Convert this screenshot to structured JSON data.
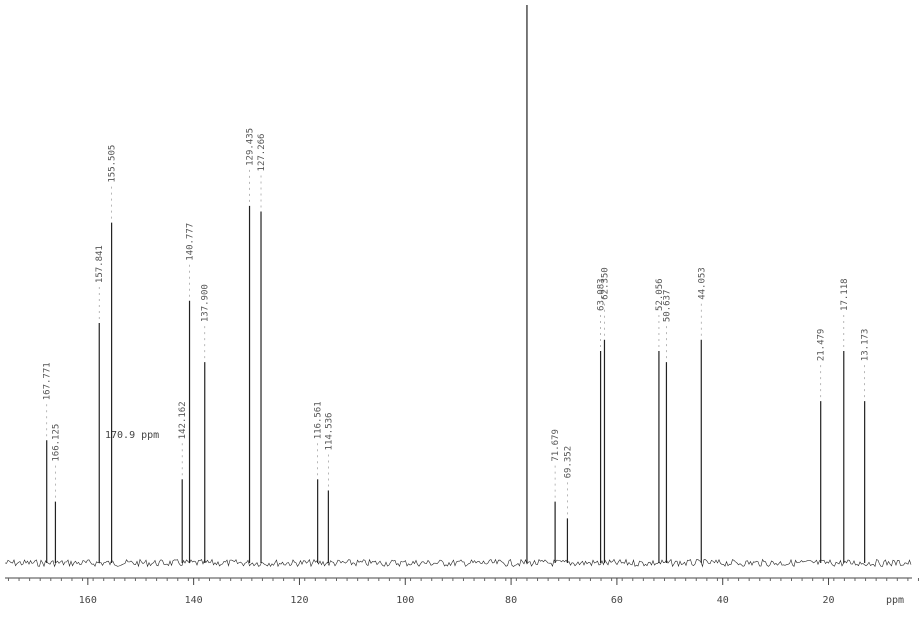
{
  "chart_data": {
    "type": "nmr",
    "xlabel": "ppm",
    "xlim": [
      176.6,
      2.9
    ],
    "ylim": [
      0,
      100
    ],
    "xticks": [
      160,
      140,
      120,
      100,
      80,
      60,
      40,
      20
    ],
    "peaks": {
      "x": [
        167.771,
        166.125,
        157.841,
        155.505,
        142.162,
        140.777,
        137.9,
        129.435,
        127.266,
        116.561,
        114.536,
        77,
        71.679,
        69.352,
        63.083,
        62.35,
        52.056,
        50.637,
        44.053,
        21.479,
        17.118,
        13.173
      ],
      "y": [
        22,
        11,
        43,
        61,
        15,
        47,
        36,
        64,
        63,
        15,
        13,
        100,
        11,
        8,
        38,
        40,
        38,
        36,
        40,
        29,
        38,
        29
      ],
      "labels": [
        "167.771",
        "166.125",
        "157.841",
        "155.505",
        "142.162",
        "140.777",
        "137.900",
        "129.435",
        "127.266",
        "116.561",
        "114.536",
        null,
        "71.679",
        "69.352",
        "63.083",
        "62.350",
        "52.056",
        "50.637",
        "44.053",
        "21.479",
        "17.118",
        "13.173"
      ]
    },
    "annotation": "170.9 ppm",
    "color": "#222222"
  }
}
